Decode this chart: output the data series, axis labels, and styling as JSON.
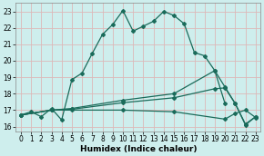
{
  "bg_color": "#ceeeed",
  "grid_color": "#ddb8b8",
  "line_color": "#1a6b5a",
  "xlabel": "Humidex (Indice chaleur)",
  "xlim": [
    -0.5,
    23.5
  ],
  "ylim": [
    15.7,
    23.5
  ],
  "yticks": [
    16,
    17,
    18,
    19,
    20,
    21,
    22,
    23
  ],
  "xticks": [
    0,
    1,
    2,
    3,
    4,
    5,
    6,
    7,
    8,
    9,
    10,
    11,
    12,
    13,
    14,
    15,
    16,
    17,
    18,
    19,
    20,
    21,
    22,
    23
  ],
  "lines": [
    {
      "x": [
        0,
        1,
        2,
        3,
        4,
        5,
        6,
        7,
        8,
        9,
        10,
        11,
        12,
        13,
        14,
        15,
        16,
        17,
        18,
        19,
        20
      ],
      "y": [
        16.7,
        16.9,
        16.6,
        17.1,
        16.4,
        18.85,
        19.25,
        20.45,
        21.6,
        22.2,
        23.05,
        21.8,
        22.1,
        22.4,
        23.0,
        22.75,
        22.25,
        20.5,
        20.3,
        19.4,
        17.4
      ]
    },
    {
      "x": [
        0,
        3,
        5,
        10,
        15,
        19,
        20,
        21,
        22,
        23
      ],
      "y": [
        16.7,
        17.0,
        17.1,
        17.6,
        18.0,
        19.4,
        18.4,
        17.4,
        16.1,
        16.6
      ]
    },
    {
      "x": [
        0,
        3,
        5,
        10,
        15,
        19,
        20,
        21,
        22,
        23
      ],
      "y": [
        16.7,
        17.0,
        17.05,
        17.45,
        17.75,
        18.3,
        18.35,
        17.4,
        16.15,
        16.6
      ]
    },
    {
      "x": [
        0,
        3,
        5,
        10,
        15,
        20,
        21,
        22,
        23
      ],
      "y": [
        16.7,
        17.0,
        17.0,
        17.0,
        16.9,
        16.45,
        16.8,
        17.0,
        16.55
      ]
    }
  ],
  "marker": "D",
  "markersize": 2.0,
  "linewidth": 0.9,
  "xlabel_fontsize": 6.5,
  "tick_fontsize": 5.5
}
